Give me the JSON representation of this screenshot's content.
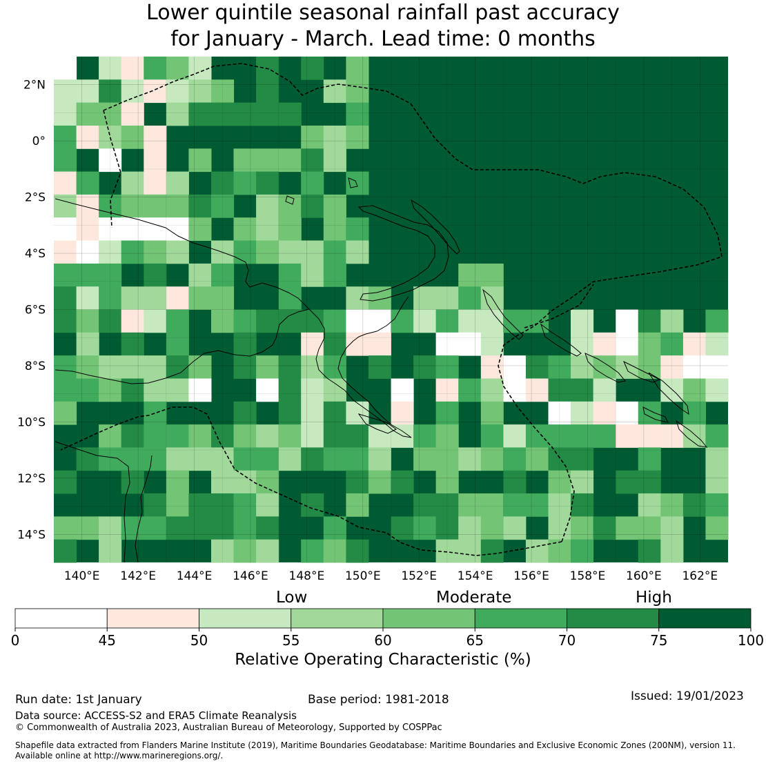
{
  "title_line1": "Lower quintile seasonal rainfall past accuracy",
  "title_line2": "for January - March. Lead time: 0 months",
  "map": {
    "lon_labels": [
      "140°E",
      "142°E",
      "144°E",
      "146°E",
      "148°E",
      "150°E",
      "152°E",
      "154°E",
      "156°E",
      "158°E",
      "160°E",
      "162°E"
    ],
    "lat_labels": [
      "2°N",
      "0°",
      "2°S",
      "4°S",
      "6°S",
      "8°S",
      "10°S",
      "12°S",
      "14°S"
    ],
    "lon_range": [
      139,
      163
    ],
    "lat_range": [
      -15,
      3
    ]
  },
  "colorbar": {
    "category_low": "Low",
    "category_moderate": "Moderate",
    "category_high": "High",
    "ticks": [
      "0",
      "45",
      "50",
      "55",
      "60",
      "65",
      "70",
      "75",
      "100"
    ],
    "colors": [
      "#ffffff",
      "#fee8de",
      "#c7e9c0",
      "#a1d99b",
      "#74c476",
      "#41ab5d",
      "#238b45",
      "#005a32"
    ],
    "label": "Relative Operating Characteristic (%)"
  },
  "footer": {
    "run_date": "Run date: 1st January",
    "base_period": "Base period: 1981-2018",
    "issued": "Issued: 19/01/2023",
    "data_source": "Data source: ACCESS-S2 and ERA5 Climate Reanalysis",
    "copyright": "© Commonwealth of Australia 2023, Australian Bureau of Meteorology, Supported by COSPPac",
    "shapefile_line1": "Shapefile data extracted from Flanders Marine Institute (2019), Maritime Boundaries Geodatabase: Maritime Boundaries and Exclusive Economic Zones (200NM), version 11.",
    "shapefile_line2": "Available online at http://www.marineregions.org/."
  }
}
